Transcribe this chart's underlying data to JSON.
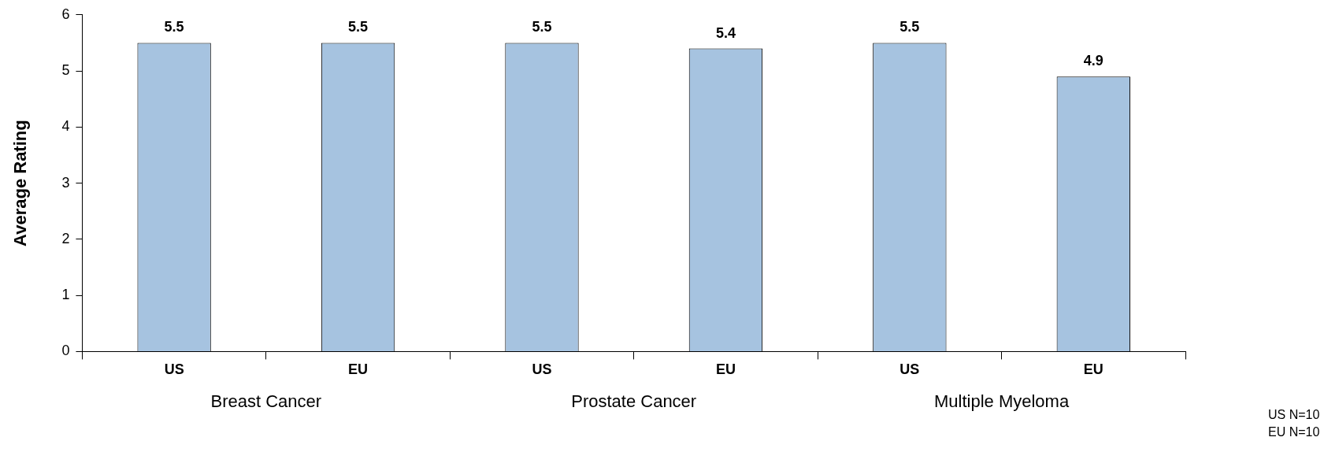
{
  "chart_data": {
    "type": "bar",
    "ylabel": "Average Rating",
    "categories": [
      "US",
      "EU",
      "US",
      "EU",
      "US",
      "EU"
    ],
    "values": [
      5.5,
      5.5,
      5.5,
      5.4,
      5.5,
      4.9
    ],
    "color": "#a6c3e0",
    "ylim": [
      0,
      6
    ],
    "yticks": [
      0,
      1,
      2,
      3,
      4,
      5,
      6
    ],
    "grid": false,
    "legend": false,
    "data_labels": true,
    "annotations": [
      "Breast Cancer",
      "Prostate Cancer",
      "Multiple Myeloma",
      "US N=10\nEU N=10"
    ]
  }
}
